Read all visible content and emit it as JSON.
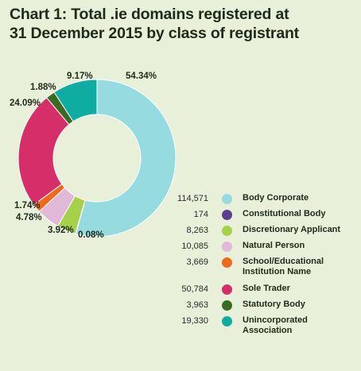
{
  "chart_data": {
    "type": "pie",
    "title_line1": "Chart 1:  Total .ie domains registered at",
    "title_line2": "31 December 2015 by class of registrant",
    "series": [
      {
        "name": "Body Corporate",
        "value": 114571,
        "value_label": "114,571",
        "percent_label": "54.34%",
        "color": "#95dbe0"
      },
      {
        "name": "Constitutional Body",
        "value": 174,
        "value_label": "174",
        "percent_label": "0.08%",
        "color": "#5b3f8c"
      },
      {
        "name": "Discretionary Applicant",
        "value": 8263,
        "value_label": "8,263",
        "percent_label": "3.92%",
        "color": "#a6d14a"
      },
      {
        "name": "Natural Person",
        "value": 10085,
        "value_label": "10,085",
        "percent_label": "4.78%",
        "color": "#e0b8d8"
      },
      {
        "name": "School/Educational Institution Name",
        "value": 3669,
        "value_label": "3,669",
        "percent_label": "1.74%",
        "color": "#ef6a1c"
      },
      {
        "name": "Sole Trader",
        "value": 50784,
        "value_label": "50,784",
        "percent_label": "24.09%",
        "color": "#d52e69"
      },
      {
        "name": "Statutory Body",
        "value": 3963,
        "value_label": "3,963",
        "percent_label": "1.88%",
        "color": "#3a6b23"
      },
      {
        "name": "Unincorporated Association",
        "value": 19330,
        "value_label": "19,330",
        "percent_label": "9.17%",
        "color": "#0fada1"
      }
    ],
    "legend_position": "bottom-right"
  }
}
